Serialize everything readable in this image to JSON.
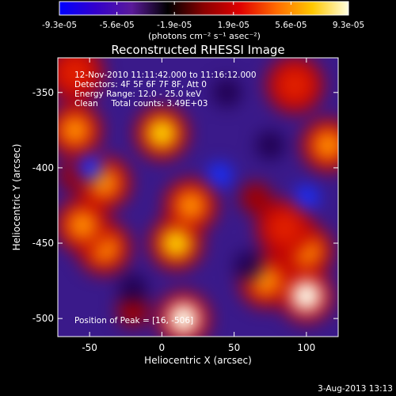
{
  "colorbar": {
    "tick_labels": [
      "-9.3e-05",
      "-5.6e-05",
      "-1.9e-05",
      "1.9e-05",
      "5.6e-05",
      "9.3e-05"
    ],
    "units_label": "(photons cm⁻² s⁻¹ asec⁻²)",
    "colors": [
      "#0000ff",
      "#3300cc",
      "#5a1a9a",
      "#000000",
      "#8b0000",
      "#e00000",
      "#ff6a00",
      "#ffc800",
      "#ffffe0"
    ]
  },
  "chart_data": {
    "type": "heatmap",
    "title": "Reconstructed RHESSI Image",
    "xlabel": "Heliocentric X (arcsec)",
    "ylabel": "Heliocentric Y (arcsec)",
    "xlim": [
      -72,
      122
    ],
    "ylim": [
      -512,
      -327
    ],
    "x_ticks": [
      -50,
      0,
      50,
      100
    ],
    "y_ticks": [
      -350,
      -400,
      -450,
      -500
    ],
    "value_range": [
      -9.3e-05,
      9.3e-05
    ],
    "annotations": [
      "12-Nov-2010 11:11:42.000 to 11:16:12.000",
      "Detectors: 4F 5F 6F 7F 8F, Att 0",
      "Energy Range: 12.0 - 25.0 keV",
      "Clean     Total counts: 3.49E+03"
    ],
    "peak_label": "Position of Peak = [16, -506]",
    "sources": [
      {
        "x": 15,
        "y": -500,
        "value": 9.3e-05
      },
      {
        "x": 100,
        "y": -485,
        "value": 8.5e-05
      },
      {
        "x": 100,
        "y": -455,
        "value": 5.5e-05
      },
      {
        "x": 10,
        "y": -450,
        "value": 7.5e-05
      },
      {
        "x": 20,
        "y": -425,
        "value": 5.5e-05
      },
      {
        "x": -40,
        "y": -453,
        "value": 6e-05
      },
      {
        "x": -55,
        "y": -438,
        "value": 5e-05
      },
      {
        "x": -40,
        "y": -410,
        "value": 5e-05
      },
      {
        "x": -60,
        "y": -375,
        "value": 6e-05
      },
      {
        "x": 0,
        "y": -377,
        "value": 7.5e-05
      },
      {
        "x": -60,
        "y": -337,
        "value": 3.5e-05
      },
      {
        "x": 72,
        "y": -475,
        "value": 5e-05
      },
      {
        "x": 85,
        "y": -440,
        "value": 4.5e-05
      },
      {
        "x": 115,
        "y": -385,
        "value": 5e-05
      },
      {
        "x": 92,
        "y": -345,
        "value": 4.5e-05
      },
      {
        "x": 65,
        "y": -420,
        "value": 2.5e-05
      },
      {
        "x": -20,
        "y": -495,
        "value": 2e-05
      },
      {
        "x": -60,
        "y": -405,
        "value": 2.5e-05
      },
      {
        "x": -50,
        "y": -400,
        "value": -6e-05
      },
      {
        "x": 40,
        "y": -405,
        "value": -5.5e-05
      },
      {
        "x": 45,
        "y": -350,
        "value": -4e-05
      },
      {
        "x": 100,
        "y": -420,
        "value": -5e-05
      },
      {
        "x": 60,
        "y": -465,
        "value": -4e-05
      },
      {
        "x": -20,
        "y": -480,
        "value": -3e-05
      },
      {
        "x": 75,
        "y": -385,
        "value": -3e-05
      }
    ]
  },
  "timestamp": "3-Aug-2013 13:13"
}
